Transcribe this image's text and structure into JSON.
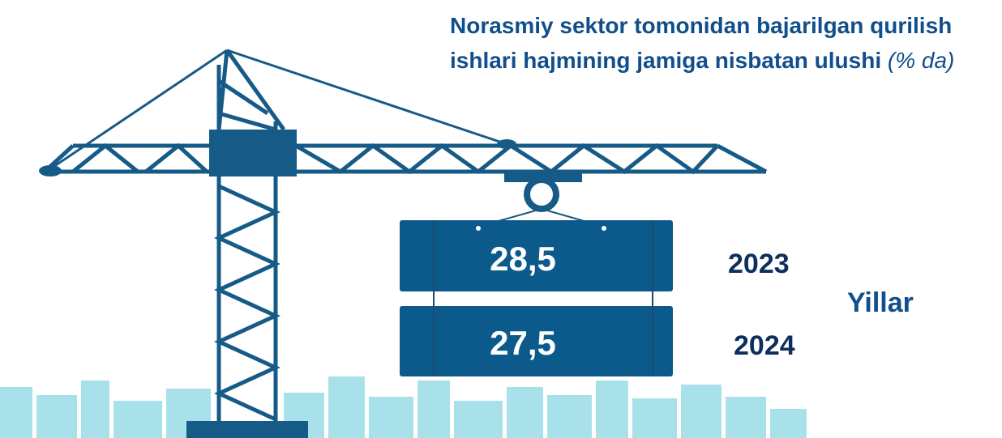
{
  "title": {
    "main": "Norasmiy sektor tomonidan bajarilgan qurilish ishlari hajmining jamiga nisbatan ulushi",
    "unit": "(% da)"
  },
  "axis_label": "Yillar",
  "rows": [
    {
      "value": "28,5",
      "year": "2023"
    },
    {
      "value": "27,5",
      "year": "2024"
    }
  ]
}
